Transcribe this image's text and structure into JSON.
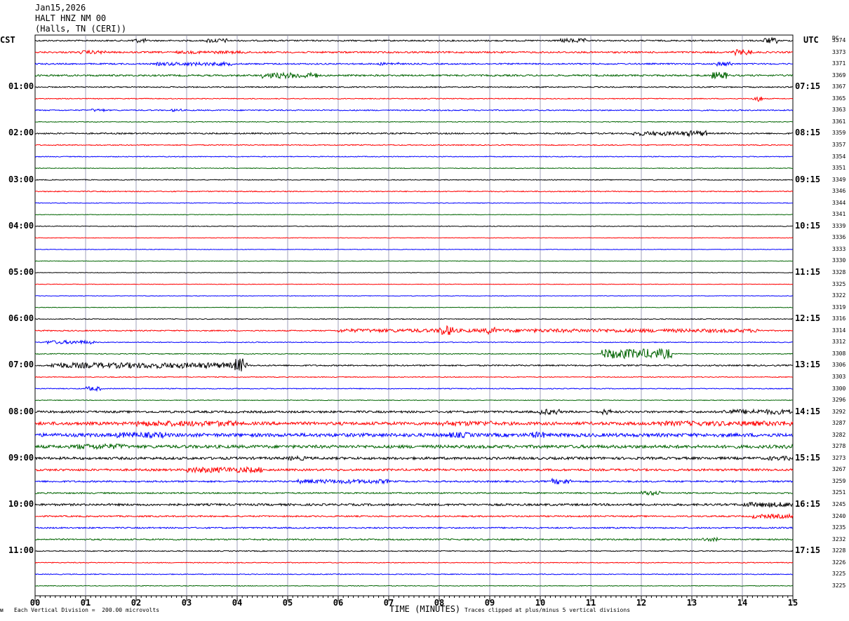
{
  "header": {
    "date": "Jan15,2026",
    "station": "HALT HNZ NM 00",
    "location": "(Halls, TN (CERI))"
  },
  "left_tz": "CST",
  "right_tz": "UTC",
  "dc_label": "DC",
  "footer": {
    "logo": "ᴍ",
    "scale": "Each Vertical Division =  200.00 microvolts",
    "xlabel": "TIME (MINUTES)",
    "clip": "Traces clipped at plus/minus 5 vertical divisions"
  },
  "colors": [
    "#000000",
    "#ff0000",
    "#0000ff",
    "#006400"
  ],
  "chart_data": {
    "type": "line",
    "title": "HALT HNZ NM 00",
    "xlabel": "TIME (MINUTES)",
    "xlim": [
      0,
      15
    ],
    "x_ticks": [
      "00",
      "01",
      "02",
      "03",
      "04",
      "05",
      "06",
      "07",
      "08",
      "09",
      "10",
      "11",
      "12",
      "13",
      "14",
      "15"
    ],
    "left_hour_labels": [
      "01:00",
      "02:00",
      "03:00",
      "04:00",
      "05:00",
      "06:00",
      "07:00",
      "08:00",
      "09:00",
      "10:00",
      "11:00"
    ],
    "right_hour_labels": [
      "07:15",
      "08:15",
      "09:15",
      "10:15",
      "11:15",
      "12:15",
      "13:15",
      "14:15",
      "15:15",
      "16:15",
      "17:15"
    ],
    "dc_offsets": [
      "3374",
      "3373",
      "3371",
      "3369",
      "3367",
      "3365",
      "3363",
      "3361",
      "3359",
      "3357",
      "3354",
      "3351",
      "3349",
      "3346",
      "3344",
      "3341",
      "3339",
      "3336",
      "3333",
      "3330",
      "3328",
      "3325",
      "3322",
      "3319",
      "3316",
      "3314",
      "3312",
      "3308",
      "3306",
      "3303",
      "3300",
      "3296",
      "3292",
      "3287",
      "3282",
      "3278",
      "3273",
      "3267",
      "3259",
      "3251",
      "3245",
      "3240",
      "3235",
      "3232",
      "3228",
      "3226",
      "3225",
      "3225"
    ],
    "trace_count": 48,
    "trace_interval_minutes": 15,
    "base_noise": [
      1,
      1.2,
      1,
      1.2,
      0.8,
      0.6,
      0.8,
      0.5,
      1,
      0.7,
      0.6,
      0.5,
      0.6,
      0.7,
      0.5,
      0.4,
      0.5,
      0.4,
      0.4,
      0.4,
      0.4,
      0.4,
      0.4,
      0.4,
      0.6,
      0.8,
      0.6,
      0.6,
      1,
      0.6,
      0.6,
      0.5,
      1.5,
      2.2,
      2.5,
      2.2,
      1.8,
      1.5,
      1.2,
      1,
      1.5,
      1,
      1,
      1,
      0.7,
      0.6,
      0.6,
      0.5
    ],
    "events": [
      {
        "trace": 0,
        "start": 1.9,
        "end": 2.2,
        "amp": 3
      },
      {
        "trace": 0,
        "start": 3.4,
        "end": 3.8,
        "amp": 3
      },
      {
        "trace": 0,
        "start": 10.4,
        "end": 10.9,
        "amp": 3
      },
      {
        "trace": 0,
        "start": 14.4,
        "end": 14.7,
        "amp": 4
      },
      {
        "trace": 1,
        "start": 0.9,
        "end": 1.4,
        "amp": 2.5
      },
      {
        "trace": 1,
        "start": 2.8,
        "end": 4.2,
        "amp": 2
      },
      {
        "trace": 1,
        "start": 13.8,
        "end": 14.2,
        "amp": 4
      },
      {
        "trace": 2,
        "start": 2.4,
        "end": 3.9,
        "amp": 2.5
      },
      {
        "trace": 2,
        "start": 6.8,
        "end": 7.2,
        "amp": 2
      },
      {
        "trace": 2,
        "start": 13.5,
        "end": 13.8,
        "amp": 3
      },
      {
        "trace": 3,
        "start": 4.5,
        "end": 5.6,
        "amp": 4
      },
      {
        "trace": 3,
        "start": 13.4,
        "end": 13.7,
        "amp": 5
      },
      {
        "trace": 5,
        "start": 14.2,
        "end": 14.4,
        "amp": 4
      },
      {
        "trace": 6,
        "start": 1.1,
        "end": 1.4,
        "amp": 2
      },
      {
        "trace": 6,
        "start": 2.7,
        "end": 2.9,
        "amp": 2
      },
      {
        "trace": 8,
        "start": 11.8,
        "end": 13.0,
        "amp": 3
      },
      {
        "trace": 8,
        "start": 12.9,
        "end": 13.3,
        "amp": 4
      },
      {
        "trace": 25,
        "start": 6.0,
        "end": 14.4,
        "amp": 2.5
      },
      {
        "trace": 25,
        "start": 8.0,
        "end": 8.3,
        "amp": 7
      },
      {
        "trace": 25,
        "start": 8.9,
        "end": 9.1,
        "amp": 5
      },
      {
        "trace": 26,
        "start": 0.2,
        "end": 1.2,
        "amp": 2.5
      },
      {
        "trace": 27,
        "start": 11.2,
        "end": 12.6,
        "amp": 7
      },
      {
        "trace": 28,
        "start": 0.3,
        "end": 4.2,
        "amp": 4
      },
      {
        "trace": 28,
        "start": 3.95,
        "end": 4.15,
        "amp": 10
      },
      {
        "trace": 30,
        "start": 1.0,
        "end": 1.3,
        "amp": 3
      },
      {
        "trace": 32,
        "start": 10.0,
        "end": 10.4,
        "amp": 4
      },
      {
        "trace": 32,
        "start": 11.2,
        "end": 11.4,
        "amp": 4
      },
      {
        "trace": 32,
        "start": 13.6,
        "end": 15.0,
        "amp": 3.5
      },
      {
        "trace": 33,
        "start": 2.0,
        "end": 4.0,
        "amp": 4
      },
      {
        "trace": 33,
        "start": 8.0,
        "end": 9.1,
        "amp": 3.5
      },
      {
        "trace": 33,
        "start": 12.2,
        "end": 15.0,
        "amp": 3.5
      },
      {
        "trace": 34,
        "start": 1.6,
        "end": 2.6,
        "amp": 4
      },
      {
        "trace": 34,
        "start": 8.2,
        "end": 8.6,
        "amp": 4
      },
      {
        "trace": 34,
        "start": 9.8,
        "end": 10.1,
        "amp": 4.5
      },
      {
        "trace": 35,
        "start": 0.8,
        "end": 1.8,
        "amp": 4
      },
      {
        "trace": 35,
        "start": 14.8,
        "end": 15.0,
        "amp": 3
      },
      {
        "trace": 36,
        "start": 5.0,
        "end": 5.4,
        "amp": 3
      },
      {
        "trace": 36,
        "start": 14.5,
        "end": 15.0,
        "amp": 3
      },
      {
        "trace": 37,
        "start": 3.0,
        "end": 4.5,
        "amp": 4
      },
      {
        "trace": 38,
        "start": 5.2,
        "end": 7.0,
        "amp": 3
      },
      {
        "trace": 38,
        "start": 10.2,
        "end": 10.6,
        "amp": 4
      },
      {
        "trace": 39,
        "start": 12.0,
        "end": 12.4,
        "amp": 3
      },
      {
        "trace": 40,
        "start": 14.0,
        "end": 15.0,
        "amp": 3.5
      },
      {
        "trace": 41,
        "start": 14.2,
        "end": 15.0,
        "amp": 3
      },
      {
        "trace": 43,
        "start": 13.2,
        "end": 13.5,
        "amp": 2.5
      }
    ]
  }
}
